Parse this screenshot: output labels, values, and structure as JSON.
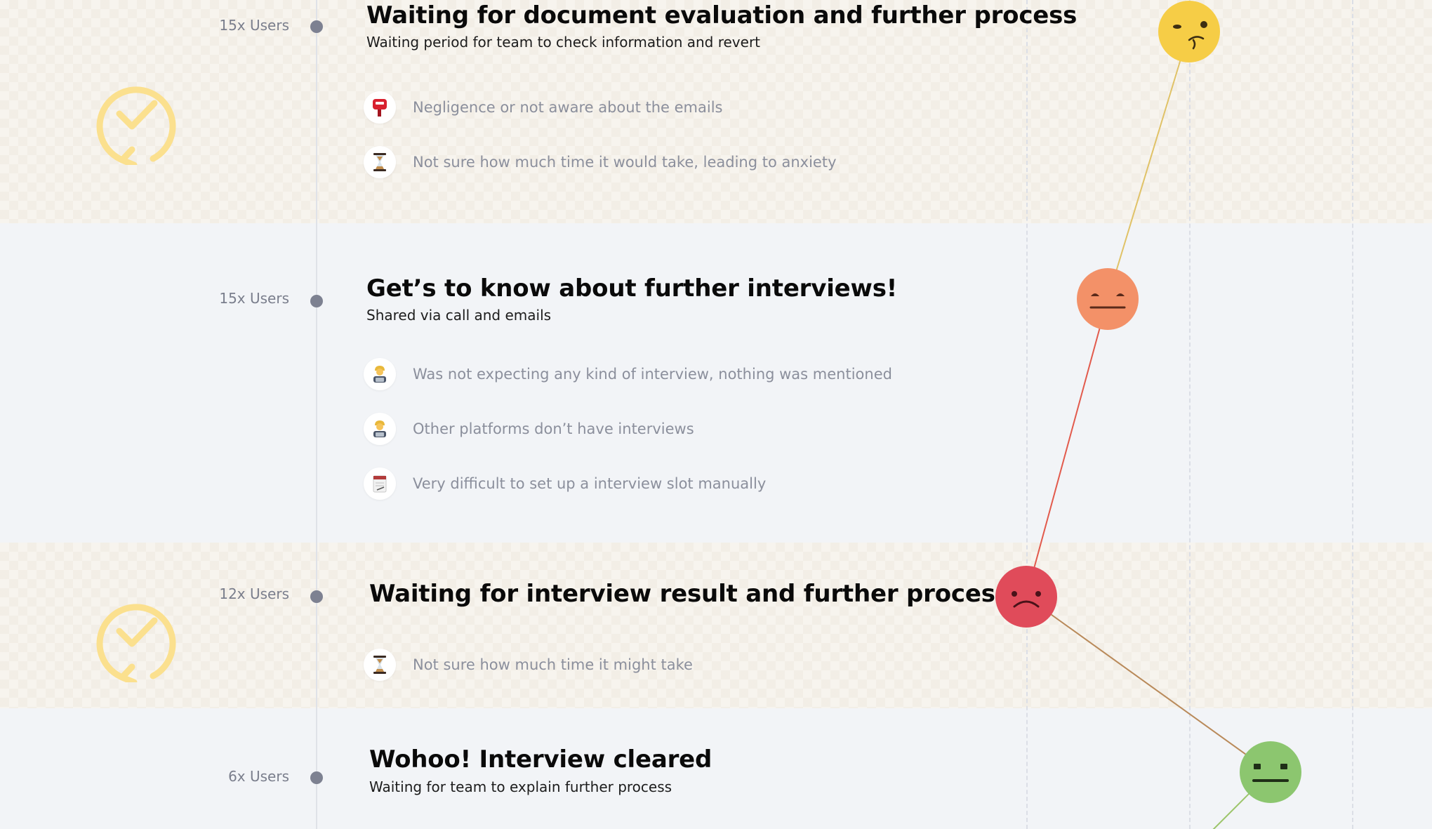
{
  "colors": {
    "neutral_yellow": "#f6cd46",
    "meh_orange": "#f39168",
    "sad_red": "#e04b5a",
    "okay_green": "#8cc66f",
    "waiting_icon": "#fbe08e"
  },
  "stages": [
    {
      "users": "15x Users",
      "title": "Waiting for document evaluation and further process",
      "subtitle": "Waiting period for team to check information and revert",
      "band": "waiting",
      "emotion": "thinking",
      "pain_points": [
        {
          "icon": "mailbox-icon",
          "text": "Negligence or not aware about the emails"
        },
        {
          "icon": "hourglass-icon",
          "text": "Not sure how much time it would take, leading to anxiety"
        }
      ]
    },
    {
      "users": "15x Users",
      "title": "Get’s to know about further interviews!",
      "subtitle": "Shared via call and emails",
      "band": "plain",
      "emotion": "expressionless",
      "pain_points": [
        {
          "icon": "person-laptop-icon",
          "text": "Was not expecting any kind of interview, nothing was mentioned"
        },
        {
          "icon": "person-laptop-icon",
          "text": "Other platforms don’t have interviews"
        },
        {
          "icon": "notepad-icon",
          "text": "Very difficult to set up a interview slot manually"
        }
      ]
    },
    {
      "users": "12x Users",
      "title": "Waiting for interview result and further process",
      "subtitle": "",
      "band": "waiting",
      "emotion": "sad",
      "pain_points": [
        {
          "icon": "hourglass-icon",
          "text": "Not sure how much time it might take"
        }
      ]
    },
    {
      "users": "6x Users",
      "title": "Wohoo! Interview cleared",
      "subtitle": "Waiting for team to explain further process",
      "band": "plain",
      "emotion": "neutral",
      "pain_points": []
    }
  ]
}
